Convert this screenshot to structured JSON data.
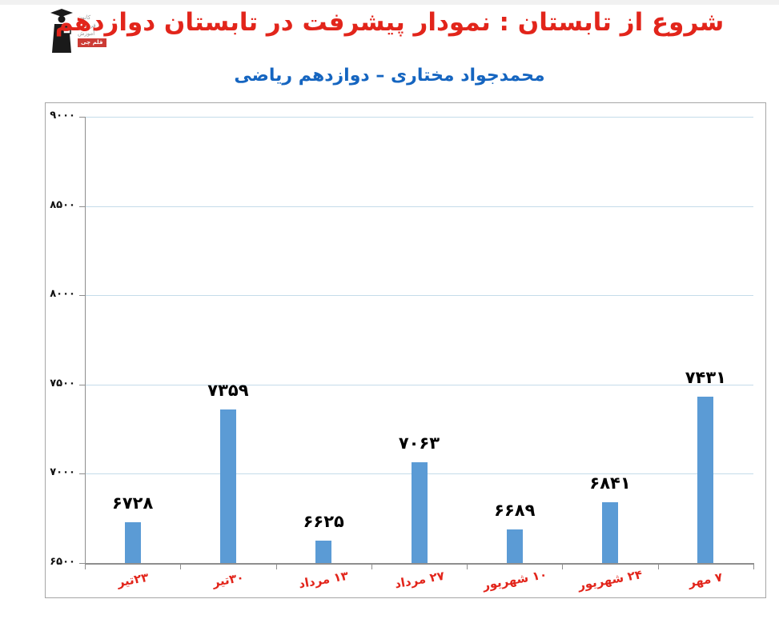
{
  "logo": {
    "org_lines": [
      "کانون",
      "فرهنگی",
      "آموزش"
    ],
    "badge": "قلم چی",
    "badge_color": "#cc3b35"
  },
  "header": {
    "title": "شروع از تابستان : نمودار پیشرفت در تابستان دوازدهم",
    "title_color": "#e2251b",
    "subtitle": "محمدجواد مختاری – دوازدهم ریاضی",
    "subtitle_color": "#1565c0"
  },
  "chart_data": {
    "type": "bar",
    "title": "",
    "xlabel": "",
    "ylabel": "",
    "categories": [
      "۲۳تیر",
      "۳۰تیر",
      "۱۳ مرداد",
      "۲۷ مرداد",
      "۱۰ شهریور",
      "۲۴ شهریور",
      "۷ مهر"
    ],
    "values": [
      6728,
      7359,
      6625,
      7063,
      6689,
      6841,
      7431
    ],
    "value_labels": [
      "۶۷۲۸",
      "۷۳۵۹",
      "۶۶۲۵",
      "۷۰۶۳",
      "۶۶۸۹",
      "۶۸۴۱",
      "۷۴۳۱"
    ],
    "ylim": [
      6500,
      9000
    ],
    "yticks": [
      {
        "value": 9000,
        "label": "۹۰۰۰"
      },
      {
        "value": 8500,
        "label": "۸۵۰۰"
      },
      {
        "value": 8000,
        "label": "۸۰۰۰"
      },
      {
        "value": 7500,
        "label": "۷۵۰۰"
      },
      {
        "value": 7000,
        "label": "۷۰۰۰"
      },
      {
        "value": 6500,
        "label": "۶۵۰۰"
      }
    ],
    "grid": true,
    "legend": "none",
    "bar_color": "#5b9bd5",
    "gridline_color": "#c5dcea",
    "axis_color": "#8e8e8e",
    "xlabel_color": "#e2251b",
    "value_label_color": "#000000"
  }
}
